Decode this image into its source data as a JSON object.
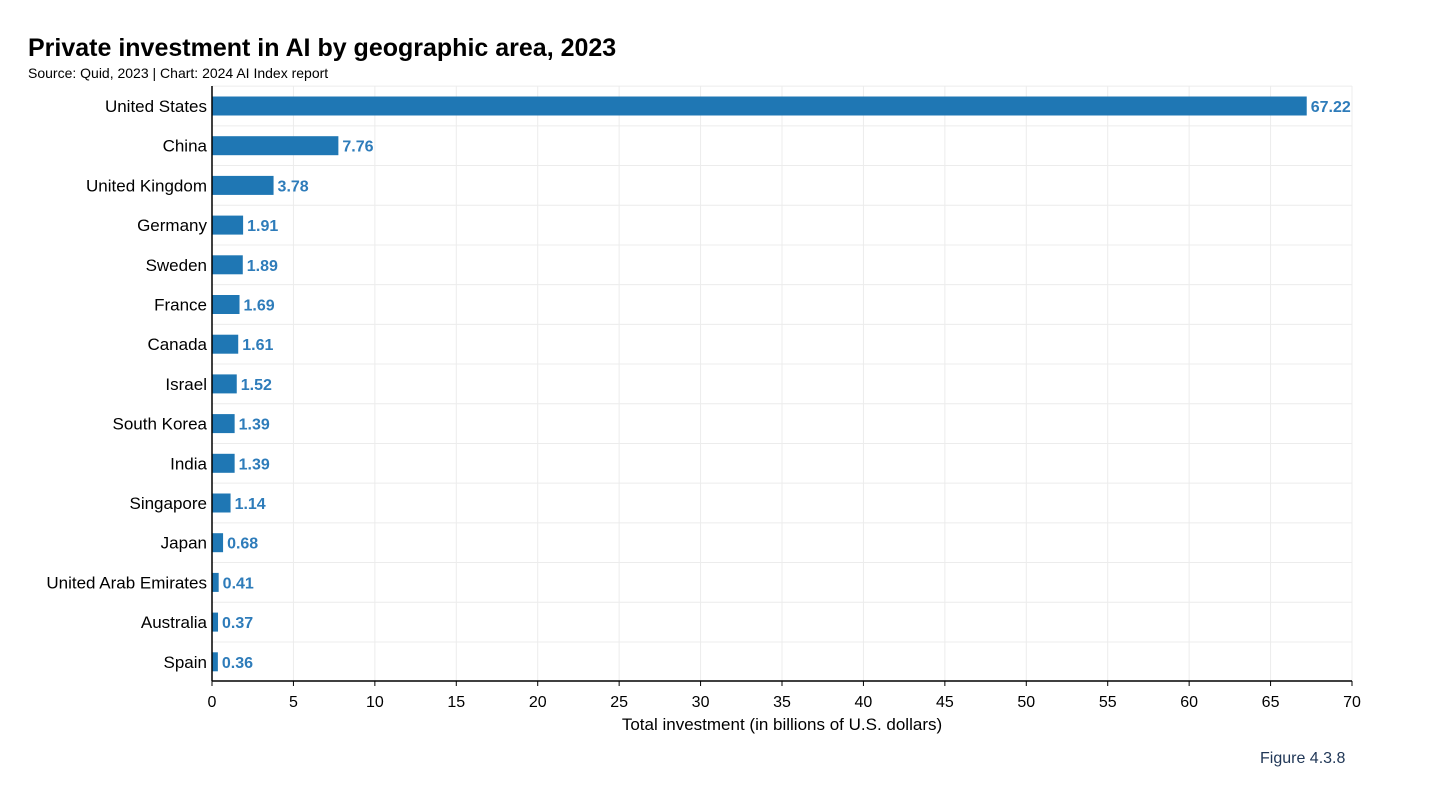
{
  "header": {
    "title": "Private investment in AI by geographic area, 2023",
    "source": "Source: Quid, 2023 | Chart: 2024 AI Index report"
  },
  "footer": {
    "figure_label": "Figure 4.3.8"
  },
  "chart_data": {
    "type": "bar",
    "orientation": "horizontal",
    "title": "Private investment in AI by geographic area, 2023",
    "xlabel": "Total investment (in billions of U.S. dollars)",
    "ylabel": "",
    "xlim": [
      0,
      70
    ],
    "xticks": [
      0,
      5,
      10,
      15,
      20,
      25,
      30,
      35,
      40,
      45,
      50,
      55,
      60,
      65,
      70
    ],
    "grid": true,
    "bar_color": "#1f77b4",
    "value_label_color": "#2e7cba",
    "categories": [
      "United States",
      "China",
      "United Kingdom",
      "Germany",
      "Sweden",
      "France",
      "Canada",
      "Israel",
      "South Korea",
      "India",
      "Singapore",
      "Japan",
      "United Arab Emirates",
      "Australia",
      "Spain"
    ],
    "values": [
      67.22,
      7.76,
      3.78,
      1.91,
      1.89,
      1.69,
      1.61,
      1.52,
      1.39,
      1.39,
      1.14,
      0.68,
      0.41,
      0.37,
      0.36
    ],
    "value_labels": [
      "67.22",
      "7.76",
      "3.78",
      "1.91",
      "1.89",
      "1.69",
      "1.61",
      "1.52",
      "1.39",
      "1.39",
      "1.14",
      "0.68",
      "0.41",
      "0.37",
      "0.36"
    ]
  }
}
